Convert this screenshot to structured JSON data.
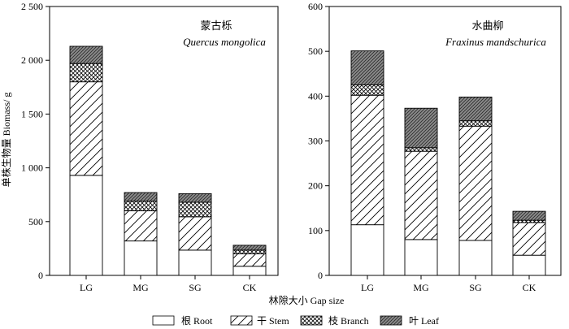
{
  "chart_data": [
    {
      "type": "bar",
      "stacked": true,
      "title": "蒙古栎",
      "subtitle": "Quercus mongolica",
      "ylabel": "单株生物量 Biomass/ g",
      "ylim": [
        0,
        2500
      ],
      "yticks": [
        0,
        500,
        1000,
        1500,
        2000,
        2500
      ],
      "ytick_labels": [
        "0",
        "500",
        "1 000",
        "1 500",
        "2 000",
        "2 500"
      ],
      "categories": [
        "LG",
        "MG",
        "SG",
        "CK"
      ],
      "series": [
        {
          "name": "根 Root",
          "values": [
            930,
            320,
            235,
            85
          ]
        },
        {
          "name": "干 Stem",
          "values": [
            870,
            280,
            310,
            115
          ]
        },
        {
          "name": "枝 Branch",
          "values": [
            170,
            90,
            135,
            35
          ]
        },
        {
          "name": "叶 Leaf",
          "values": [
            160,
            80,
            80,
            45
          ]
        }
      ]
    },
    {
      "type": "bar",
      "stacked": true,
      "title": "水曲柳",
      "subtitle": "Fraxinus mandschurica",
      "ylim": [
        0,
        600
      ],
      "yticks": [
        0,
        100,
        200,
        300,
        400,
        500,
        600
      ],
      "ytick_labels": [
        "0",
        "100",
        "200",
        "300",
        "400",
        "500",
        "600"
      ],
      "categories": [
        "LG",
        "MG",
        "SG",
        "CK"
      ],
      "series": [
        {
          "name": "根 Root",
          "values": [
            113,
            80,
            78,
            45
          ]
        },
        {
          "name": "干 Stem",
          "values": [
            289,
            197,
            255,
            73
          ]
        },
        {
          "name": "枝 Branch",
          "values": [
            23,
            8,
            12,
            5
          ]
        },
        {
          "name": "叶 Leaf",
          "values": [
            76,
            88,
            53,
            20
          ]
        }
      ]
    }
  ],
  "xlabel": "林隙大小 Gap size",
  "legend": [
    {
      "label": "根 Root",
      "pattern": "solid"
    },
    {
      "label": "干 Stem",
      "pattern": "diag"
    },
    {
      "label": "枝 Branch",
      "pattern": "cross"
    },
    {
      "label": "叶 Leaf",
      "pattern": "dense"
    }
  ]
}
